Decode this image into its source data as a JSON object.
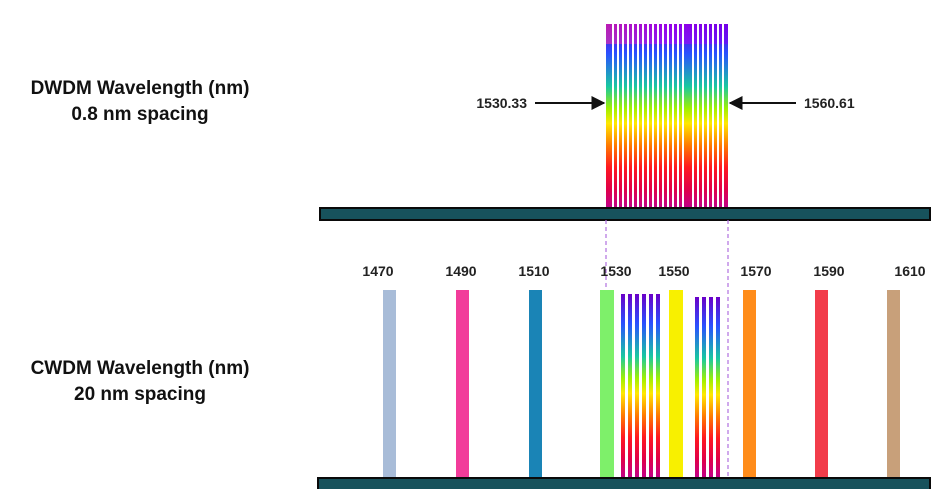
{
  "dwdm": {
    "title": "DWDM Wavelength (nm)",
    "subtitle": "0.8 nm spacing",
    "start_nm": "1530.33",
    "end_nm": "1560.61"
  },
  "cwdm": {
    "title": "CWDM Wavelength (nm)",
    "subtitle": "20 nm spacing",
    "channels": [
      {
        "nm": "1470",
        "color": "#a8bcd8"
      },
      {
        "nm": "1490",
        "color": "#f23c9a"
      },
      {
        "nm": "1510",
        "color": "#1a84b6"
      },
      {
        "nm": "1530",
        "color": "#7ef06a"
      },
      {
        "nm": "1550",
        "color": "#f8f000"
      },
      {
        "nm": "1570",
        "color": "#ff8c1a"
      },
      {
        "nm": "1590",
        "color": "#f23c4a"
      },
      {
        "nm": "1610",
        "color": "#c8a07a"
      }
    ]
  },
  "colors": {
    "fiber_bar": "#17525c",
    "dashed_guide": "#b070e0",
    "spectrum": [
      "#6a00c8",
      "#2a50ff",
      "#18c8a0",
      "#a0f000",
      "#ffe800",
      "#ff7a00",
      "#ff1820",
      "#e0004a",
      "#c0008a"
    ]
  }
}
